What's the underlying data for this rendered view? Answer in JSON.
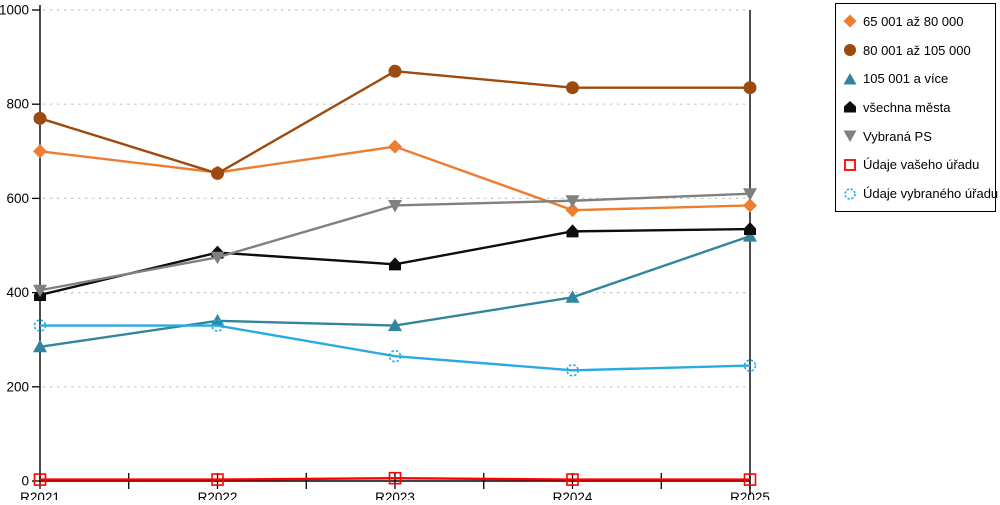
{
  "chart_data": {
    "type": "line",
    "categories": [
      "R2021",
      "R2022",
      "R2023",
      "R2024",
      "R2025"
    ],
    "series": [
      {
        "name": "65 001 až 80 000",
        "marker": "diamond",
        "color": "#ED7D31",
        "values": [
          700,
          655,
          710,
          575,
          585
        ]
      },
      {
        "name": "80 001 až 105 000",
        "marker": "circle",
        "color": "#9C4A0E",
        "values": [
          770,
          653,
          870,
          835,
          835
        ]
      },
      {
        "name": "105 001 a více",
        "marker": "triangle-up",
        "color": "#31859C",
        "values": [
          285,
          340,
          330,
          390,
          520
        ]
      },
      {
        "name": "všechna města",
        "marker": "house",
        "color": "#0D0D0D",
        "values": [
          395,
          485,
          460,
          530,
          535
        ]
      },
      {
        "name": "Vybraná PS",
        "marker": "triangle-down",
        "color": "#808080",
        "values": [
          405,
          475,
          585,
          595,
          610
        ]
      },
      {
        "name": "Údaje vašeho úřadu",
        "marker": "open-square",
        "color": "#FF0000",
        "values": [
          3,
          3,
          6,
          3,
          3
        ]
      },
      {
        "name": "Údaje vybraného úřadu",
        "marker": "open-circle",
        "color": "#29ABE2",
        "values": [
          330,
          330,
          265,
          235,
          245
        ]
      }
    ],
    "ylim": [
      0,
      1000
    ],
    "ytick_step": 200,
    "grid": "horizontal-dotted",
    "legend_position": "top-right",
    "colors": {
      "axis": "#000000",
      "grid": "#C8C8C8"
    }
  }
}
